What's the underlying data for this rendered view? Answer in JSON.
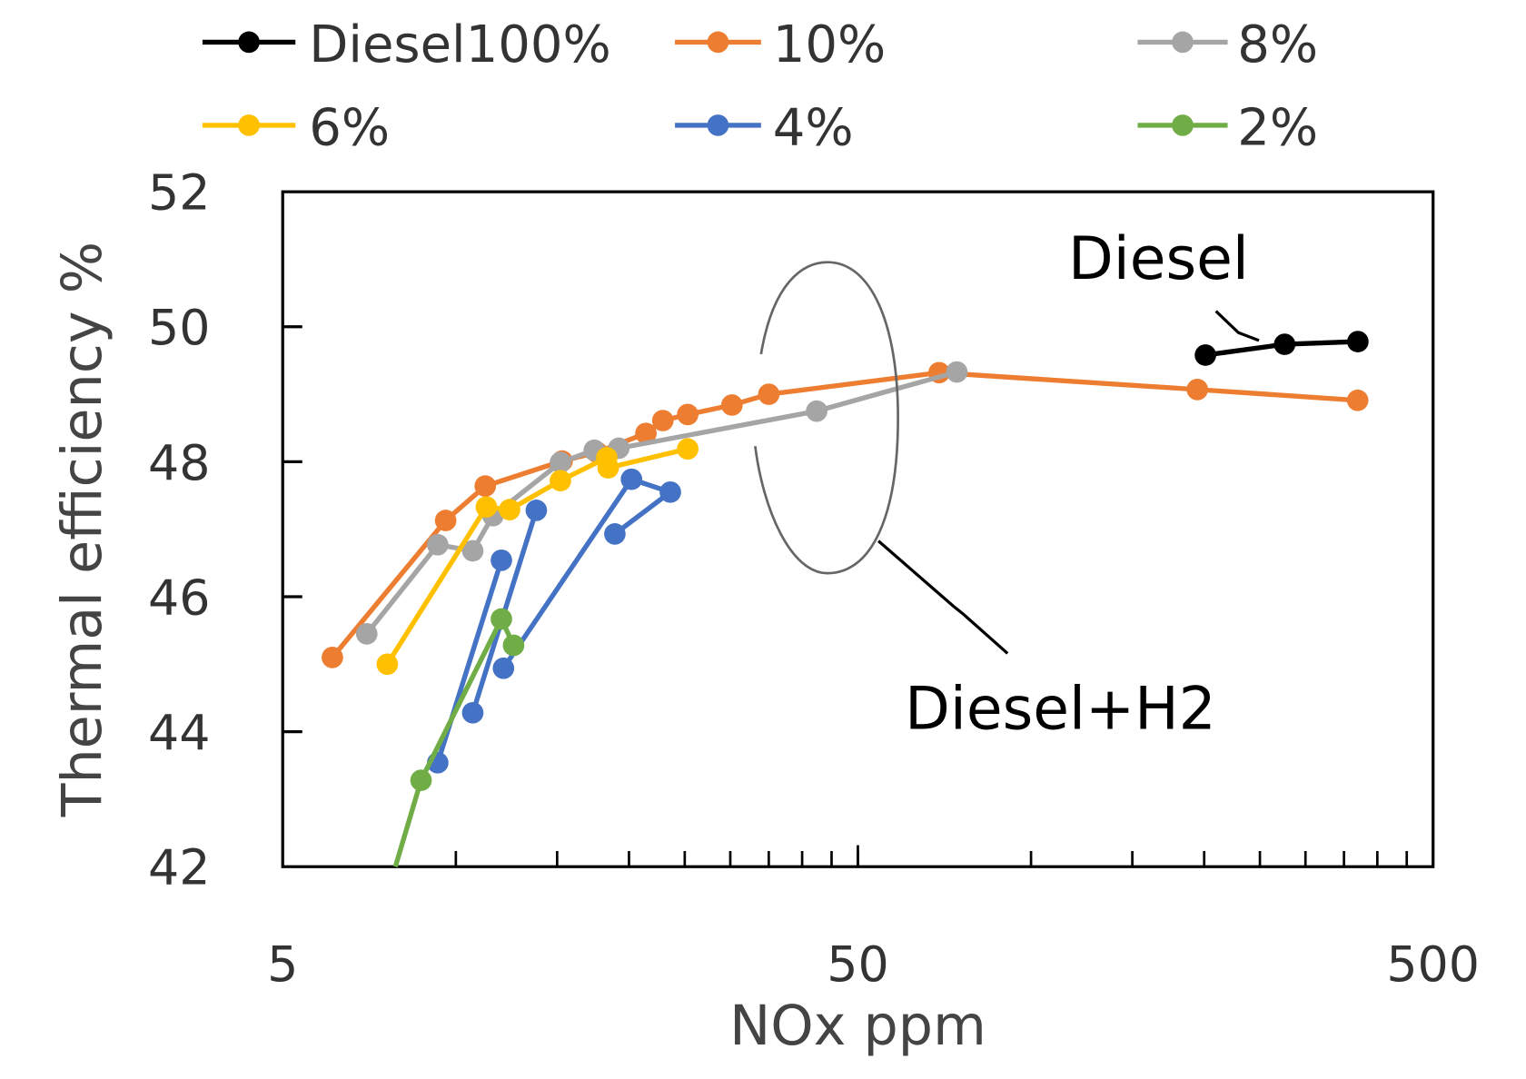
{
  "chart_data": {
    "type": "line",
    "title": "",
    "xlabel": "NOx ppm",
    "ylabel": "Thermal efficiency %",
    "xscale": "log",
    "xlim": [
      5,
      500
    ],
    "ylim": [
      42,
      52
    ],
    "xticks": [
      5,
      50,
      500
    ],
    "xtick_labels": [
      "5",
      "50",
      "500"
    ],
    "yticks": [
      42,
      44,
      46,
      48,
      50,
      52
    ],
    "ytick_labels": [
      "42",
      "44",
      "46",
      "48",
      "50",
      "52"
    ],
    "grid": false,
    "legend_position": "top",
    "series": [
      {
        "name": "Diesel100%",
        "color": "#000000",
        "segments": [
          [
            [
              201,
              49.58
            ],
            [
              276,
              49.74
            ],
            [
              370,
              49.78
            ]
          ]
        ]
      },
      {
        "name": "10%",
        "color": "#ED7D31",
        "segments": [
          [
            [
              6.1,
              45.1
            ],
            [
              9.6,
              47.13
            ],
            [
              11.25,
              47.64
            ],
            [
              15.3,
              48.01
            ],
            [
              17.6,
              48.14
            ],
            [
              21.4,
              48.42
            ],
            [
              22.9,
              48.61
            ],
            [
              25.3,
              48.7
            ],
            [
              30.2,
              48.84
            ],
            [
              35.0,
              49.0
            ],
            [
              69.2,
              49.32
            ],
            [
              194.6,
              49.07
            ],
            [
              369.7,
              48.91
            ]
          ]
        ]
      },
      {
        "name": "8%",
        "color": "#A5A5A5",
        "segments": [
          [
            [
              7.0,
              45.45
            ],
            [
              9.3,
              46.77
            ],
            [
              10.7,
              46.68
            ],
            [
              11.6,
              47.2
            ],
            [
              15.2,
              47.99
            ],
            [
              17.4,
              48.17
            ],
            [
              19.2,
              48.2
            ],
            [
              42.4,
              48.75
            ],
            [
              74.3,
              49.33
            ]
          ]
        ]
      },
      {
        "name": "6%",
        "color": "#FFC000",
        "segments": [
          [
            [
              7.6,
              45.0
            ],
            [
              11.3,
              47.33
            ],
            [
              12.4,
              47.29
            ],
            [
              15.2,
              47.72
            ],
            [
              18.3,
              48.06
            ],
            [
              18.4,
              47.91
            ],
            [
              25.3,
              48.19
            ]
          ]
        ]
      },
      {
        "name": "4%",
        "color": "#4472C4",
        "segments": [
          [
            [
              9.3,
              43.54
            ],
            [
              12.0,
              46.54
            ]
          ],
          [
            [
              10.7,
              44.28
            ],
            [
              13.8,
              47.28
            ]
          ],
          [
            [
              12.1,
              44.94
            ],
            [
              20.2,
              47.74
            ],
            [
              23.6,
              47.55
            ],
            [
              18.9,
              46.93
            ]
          ]
        ]
      },
      {
        "name": "2%",
        "color": "#70AD47",
        "segments": [
          [
            [
              7.85,
              42.0
            ],
            [
              8.7,
              43.28
            ],
            [
              12.0,
              45.67
            ],
            [
              12.6,
              45.28
            ]
          ]
        ]
      }
    ],
    "annotations": [
      {
        "text": "Diesel",
        "target": "Diesel100%"
      },
      {
        "text": "Diesel+H2",
        "target": "hydrogen blend series (ellipse)"
      }
    ]
  }
}
